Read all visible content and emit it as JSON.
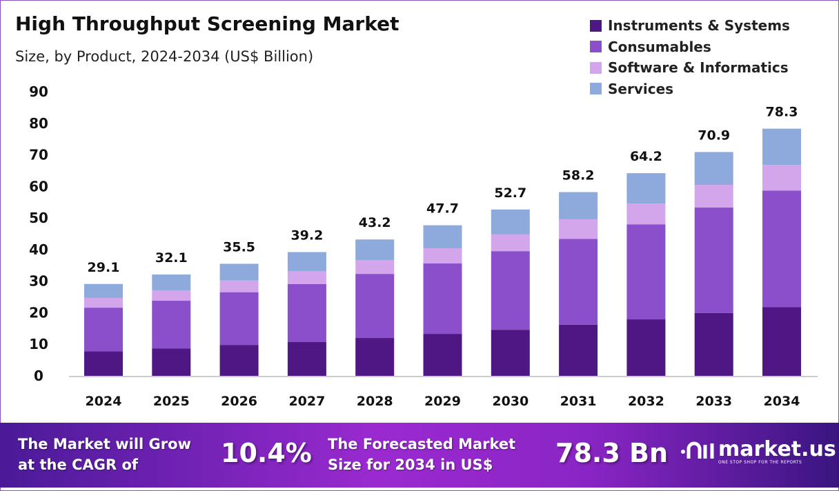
{
  "chart_data": {
    "type": "bar",
    "stacked": true,
    "title": "High Throughput Screening Market",
    "subtitle": "Size, by Product, 2024-2034 (US$ Billion)",
    "categories": [
      "2024",
      "2025",
      "2026",
      "2027",
      "2028",
      "2029",
      "2030",
      "2031",
      "2032",
      "2033",
      "2034"
    ],
    "series": [
      {
        "name": "Instruments & Systems",
        "color": "#4f1783",
        "values": [
          7.8,
          8.7,
          9.8,
          10.7,
          12.0,
          13.3,
          14.6,
          16.2,
          17.9,
          19.9,
          21.8
        ]
      },
      {
        "name": "Consumables",
        "color": "#8b4fcb",
        "values": [
          13.8,
          15.1,
          16.7,
          18.4,
          20.3,
          22.3,
          24.9,
          27.2,
          30.1,
          33.4,
          36.9
        ]
      },
      {
        "name": "Software & Informatics",
        "color": "#d3a5ea",
        "values": [
          3.1,
          3.3,
          3.7,
          4.1,
          4.4,
          4.8,
          5.3,
          6.2,
          6.6,
          7.2,
          8.1
        ]
      },
      {
        "name": "Services",
        "color": "#8eaadc",
        "values": [
          4.4,
          5.0,
          5.3,
          6.0,
          6.5,
          7.3,
          7.9,
          8.6,
          9.6,
          10.4,
          11.5
        ]
      }
    ],
    "totals": [
      "29.1",
      "32.1",
      "35.5",
      "39.2",
      "43.2",
      "47.7",
      "52.7",
      "58.2",
      "64.2",
      "70.9",
      "78.3"
    ],
    "ylim": [
      0,
      90
    ],
    "yticks": [
      "0",
      "10",
      "20",
      "30",
      "40",
      "50",
      "60",
      "70",
      "80",
      "90"
    ],
    "grid": false,
    "legend": "top-right"
  },
  "footer": {
    "cagr_label_1": "The Market will Grow",
    "cagr_label_2": "at the CAGR of",
    "cagr_value": "10.4%",
    "forecast_label_1": "The Forecasted Market",
    "forecast_label_2": "Size for 2034 in US$",
    "forecast_value": "78.3 Bn",
    "logo_text": "market.us",
    "logo_tagline": "ONE STOP SHOP FOR THE REPORTS"
  }
}
